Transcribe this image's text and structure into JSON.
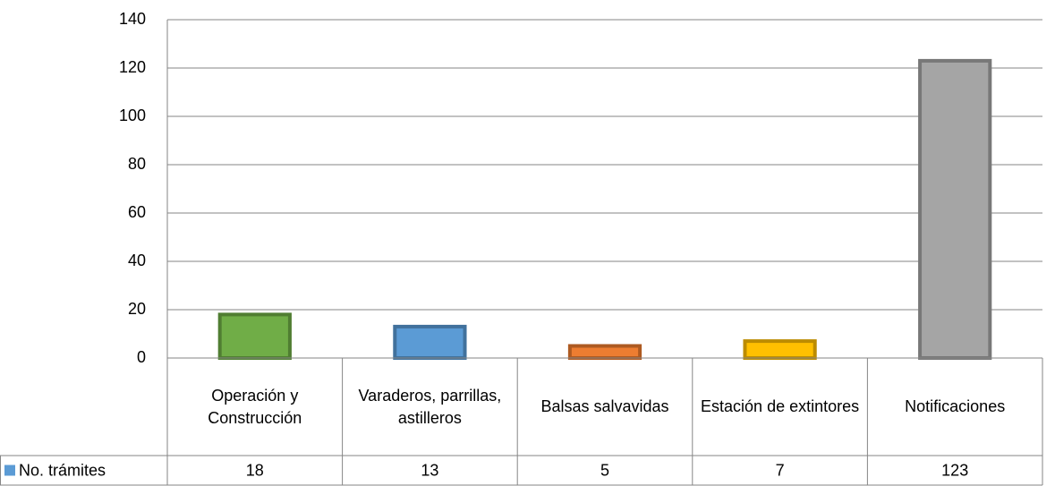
{
  "chart_data": {
    "type": "bar",
    "categories": [
      "Operación y Construcción",
      "Varaderos, parrillas, astilleros",
      "Balsas salvavidas",
      "Estación de extintores",
      "Notificaciones"
    ],
    "series": [
      {
        "name": "No. trámites",
        "color": "#5b9bd5",
        "values": [
          18,
          13,
          5,
          7,
          123
        ]
      }
    ],
    "bar_colors": [
      "#70ad47",
      "#5b9bd5",
      "#ed7d31",
      "#ffc000",
      "#a5a5a5"
    ],
    "bar_border_colors": [
      "#507e32",
      "#41719c",
      "#ae5a21",
      "#bc8c00",
      "#787878"
    ],
    "ylim": [
      0,
      140
    ],
    "yticks": [
      0,
      20,
      40,
      60,
      80,
      100,
      120,
      140
    ],
    "grid": true,
    "data_table": true
  }
}
